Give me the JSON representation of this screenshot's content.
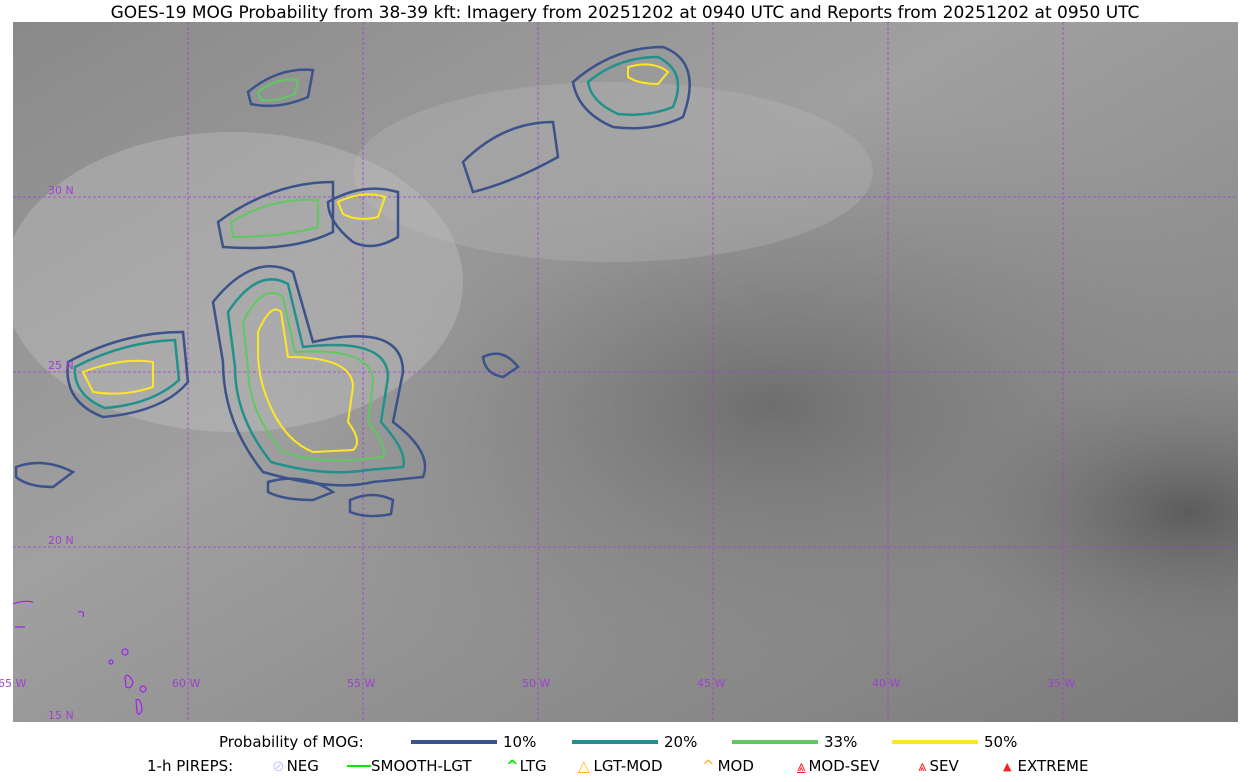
{
  "title": "GOES-19 MOG Probability from 38-39 kft: Imagery from 20251202 at 0940 UTC and Reports from 20251202 at 0950 UTC",
  "map": {
    "longitude_labels": [
      "65 W",
      "60 W",
      "55 W",
      "50 W",
      "45 W",
      "40 W",
      "35 W"
    ],
    "latitude_labels": [
      "30 N",
      "25 N",
      "20 N",
      "15 N"
    ],
    "grid_color": "#a040d0",
    "coastline_color": "#a020f0"
  },
  "legend": {
    "probability_title": "Probability of MOG:",
    "probability_levels": [
      {
        "label": "10%",
        "color": "#3b528b"
      },
      {
        "label": "20%",
        "color": "#21918c"
      },
      {
        "label": "33%",
        "color": "#5ec962"
      },
      {
        "label": "50%",
        "color": "#fde725"
      }
    ],
    "pireps_title": "1-h PIREPS:",
    "pireps": [
      {
        "label": "NEG",
        "color": "#c8c8ff",
        "icon": "neg-circle-icon"
      },
      {
        "label": "SMOOTH-LGT",
        "color": "#00ee00",
        "icon": "line-icon"
      },
      {
        "label": "LTG",
        "color": "#00ee00",
        "icon": "caret-icon"
      },
      {
        "label": "LGT-MOD",
        "color": "#ffb020",
        "icon": "caret-bar-icon"
      },
      {
        "label": "MOD",
        "color": "#ffb020",
        "icon": "caret-icon"
      },
      {
        "label": "MOD-SEV",
        "color": "#ff2020",
        "icon": "double-caret-bar-icon"
      },
      {
        "label": "SEV",
        "color": "#ff2020",
        "icon": "double-caret-icon"
      },
      {
        "label": "EXTREME",
        "color": "#ff2020",
        "icon": "filled-triangle-icon"
      }
    ]
  }
}
